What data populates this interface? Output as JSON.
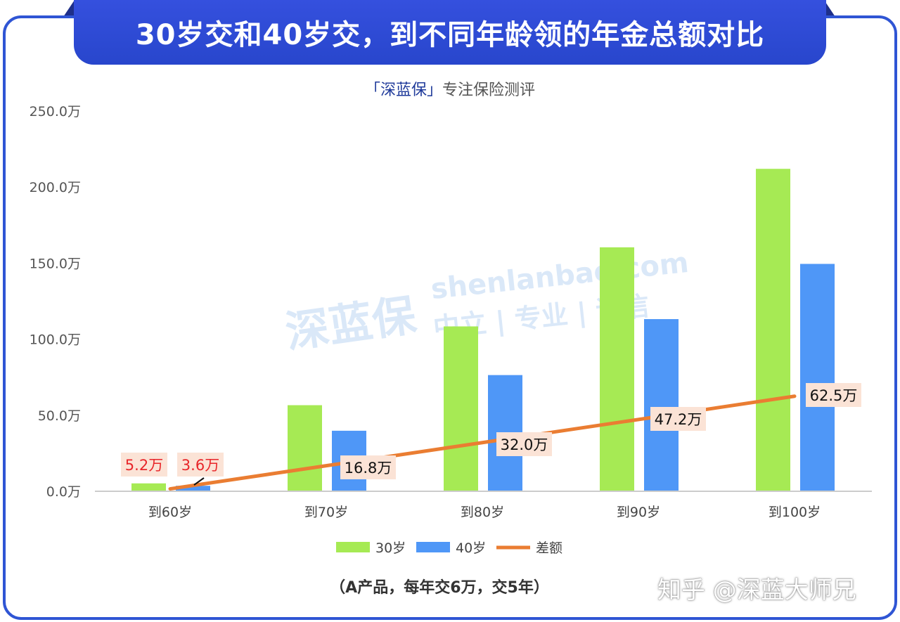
{
  "title": "30岁交和40岁交，到不同年龄领的年金总额对比",
  "subtitle_brand": "「深蓝保」",
  "subtitle_rest": "专注保险测评",
  "watermark": {
    "logo": "深蓝保",
    "site": "shenlanbao.com",
    "motto": "中立 | 专业 | 诚信"
  },
  "footnote": "（A产品，每年交6万，交5年）",
  "zhihu_watermark": "知乎 @深蓝大师兄",
  "chart_data": {
    "type": "bar",
    "title": "30岁交和40岁交，到不同年龄领的年金总额对比",
    "categories": [
      "到60岁",
      "到70岁",
      "到80岁",
      "到90岁",
      "到100岁"
    ],
    "yticks": [
      "0.0万",
      "50.0万",
      "100.0万",
      "150.0万",
      "200.0万",
      "250.0万"
    ],
    "ylim": [
      0,
      250
    ],
    "unit": "万",
    "grid": false,
    "legend_position": "bottom",
    "series": [
      {
        "name": "30岁",
        "type": "bar",
        "color": "#a6ea54",
        "values": [
          5.2,
          56.6,
          108.4,
          160.4,
          212.0
        ],
        "labels": [
          "5.2万"
        ]
      },
      {
        "name": "40岁",
        "type": "bar",
        "color": "#4f97f7",
        "values": [
          3.6,
          39.8,
          76.4,
          113.2,
          149.5
        ],
        "labels": [
          "3.6万"
        ]
      },
      {
        "name": "差额",
        "type": "line",
        "color": "#ea7d32",
        "values": [
          1.6,
          16.8,
          32.0,
          47.2,
          62.5
        ],
        "labels": [
          "",
          "16.8万",
          "32.0万",
          "47.2万",
          "62.5万"
        ]
      }
    ],
    "label_colors": {
      "highlight": "#e8262a",
      "normal": "#111111",
      "box": "#fbe3d6"
    }
  }
}
